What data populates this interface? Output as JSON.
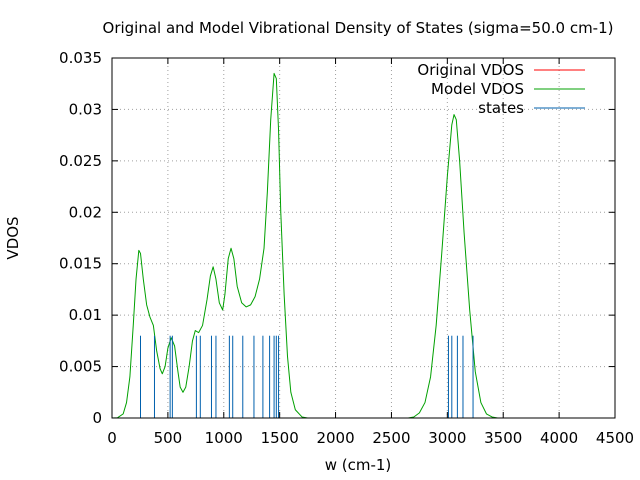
{
  "chart_data": {
    "type": "line",
    "title": "Original and Model Vibrational Density of States (sigma=50.0 cm-1)",
    "xlabel": "w (cm-1)",
    "ylabel": "VDOS",
    "xlim": [
      0,
      4500
    ],
    "ylim": [
      0,
      0.035
    ],
    "xticks": [
      0,
      500,
      1000,
      1500,
      2000,
      2500,
      3000,
      3500,
      4000,
      4500
    ],
    "xtick_labels": [
      "0",
      "500",
      "1000",
      "1500",
      "2000",
      "2500",
      "3000",
      "3500",
      "4000",
      "4500"
    ],
    "yticks": [
      0,
      0.005,
      0.01,
      0.015,
      0.02,
      0.025,
      0.03,
      0.035
    ],
    "ytick_labels": [
      "0",
      "0.005",
      "0.01",
      "0.015",
      "0.02",
      "0.025",
      "0.03",
      "0.035"
    ],
    "grid": true,
    "legend_position": "top-right",
    "series": [
      {
        "name": "Original VDOS",
        "color": "#ff0000",
        "points": []
      },
      {
        "name": "Model VDOS",
        "color": "#00a000",
        "points": [
          [
            0,
            0
          ],
          [
            50,
            3e-05
          ],
          [
            100,
            0.0004
          ],
          [
            130,
            0.0015
          ],
          [
            160,
            0.004
          ],
          [
            190,
            0.009
          ],
          [
            215,
            0.0135
          ],
          [
            240,
            0.0163
          ],
          [
            255,
            0.016
          ],
          [
            280,
            0.0135
          ],
          [
            310,
            0.011
          ],
          [
            340,
            0.0098
          ],
          [
            370,
            0.009
          ],
          [
            400,
            0.0065
          ],
          [
            430,
            0.0048
          ],
          [
            450,
            0.0043
          ],
          [
            475,
            0.005
          ],
          [
            500,
            0.0068
          ],
          [
            530,
            0.0078
          ],
          [
            560,
            0.007
          ],
          [
            590,
            0.0045
          ],
          [
            610,
            0.003
          ],
          [
            635,
            0.0025
          ],
          [
            660,
            0.003
          ],
          [
            690,
            0.005
          ],
          [
            720,
            0.0075
          ],
          [
            745,
            0.0085
          ],
          [
            775,
            0.0083
          ],
          [
            810,
            0.009
          ],
          [
            850,
            0.0115
          ],
          [
            880,
            0.0138
          ],
          [
            905,
            0.0147
          ],
          [
            930,
            0.0135
          ],
          [
            960,
            0.0112
          ],
          [
            990,
            0.0105
          ],
          [
            1010,
            0.012
          ],
          [
            1040,
            0.0155
          ],
          [
            1065,
            0.0165
          ],
          [
            1090,
            0.0155
          ],
          [
            1120,
            0.0128
          ],
          [
            1160,
            0.0112
          ],
          [
            1200,
            0.0108
          ],
          [
            1240,
            0.011
          ],
          [
            1280,
            0.0118
          ],
          [
            1320,
            0.0135
          ],
          [
            1360,
            0.0165
          ],
          [
            1390,
            0.022
          ],
          [
            1420,
            0.029
          ],
          [
            1450,
            0.0335
          ],
          [
            1470,
            0.033
          ],
          [
            1490,
            0.028
          ],
          [
            1510,
            0.02
          ],
          [
            1540,
            0.012
          ],
          [
            1570,
            0.006
          ],
          [
            1600,
            0.0025
          ],
          [
            1640,
            0.0008
          ],
          [
            1700,
            0.0001
          ],
          [
            1750,
            0
          ],
          [
            2650,
            0
          ],
          [
            2700,
            0.0001
          ],
          [
            2750,
            0.0005
          ],
          [
            2800,
            0.0015
          ],
          [
            2850,
            0.004
          ],
          [
            2900,
            0.009
          ],
          [
            2950,
            0.016
          ],
          [
            3000,
            0.0235
          ],
          [
            3040,
            0.0285
          ],
          [
            3060,
            0.0295
          ],
          [
            3080,
            0.029
          ],
          [
            3110,
            0.025
          ],
          [
            3150,
            0.018
          ],
          [
            3200,
            0.0105
          ],
          [
            3250,
            0.0045
          ],
          [
            3300,
            0.0015
          ],
          [
            3350,
            0.0004
          ],
          [
            3400,
            0.0001
          ],
          [
            3450,
            0
          ],
          [
            4500,
            0
          ]
        ]
      },
      {
        "name": "states",
        "color": "#0060ad",
        "impulses": [
          {
            "x": 255,
            "y": 0.008
          },
          {
            "x": 380,
            "y": 0.008
          },
          {
            "x": 520,
            "y": 0.008
          },
          {
            "x": 540,
            "y": 0.008
          },
          {
            "x": 755,
            "y": 0.008
          },
          {
            "x": 790,
            "y": 0.008
          },
          {
            "x": 890,
            "y": 0.008
          },
          {
            "x": 930,
            "y": 0.008
          },
          {
            "x": 1050,
            "y": 0.008
          },
          {
            "x": 1080,
            "y": 0.008
          },
          {
            "x": 1170,
            "y": 0.008
          },
          {
            "x": 1270,
            "y": 0.008
          },
          {
            "x": 1350,
            "y": 0.008
          },
          {
            "x": 1410,
            "y": 0.008
          },
          {
            "x": 1450,
            "y": 0.008
          },
          {
            "x": 1470,
            "y": 0.008
          },
          {
            "x": 1490,
            "y": 0.008
          },
          {
            "x": 3010,
            "y": 0.008
          },
          {
            "x": 3040,
            "y": 0.008
          },
          {
            "x": 3090,
            "y": 0.008
          },
          {
            "x": 3140,
            "y": 0.008
          },
          {
            "x": 3230,
            "y": 0.008
          }
        ]
      }
    ]
  }
}
